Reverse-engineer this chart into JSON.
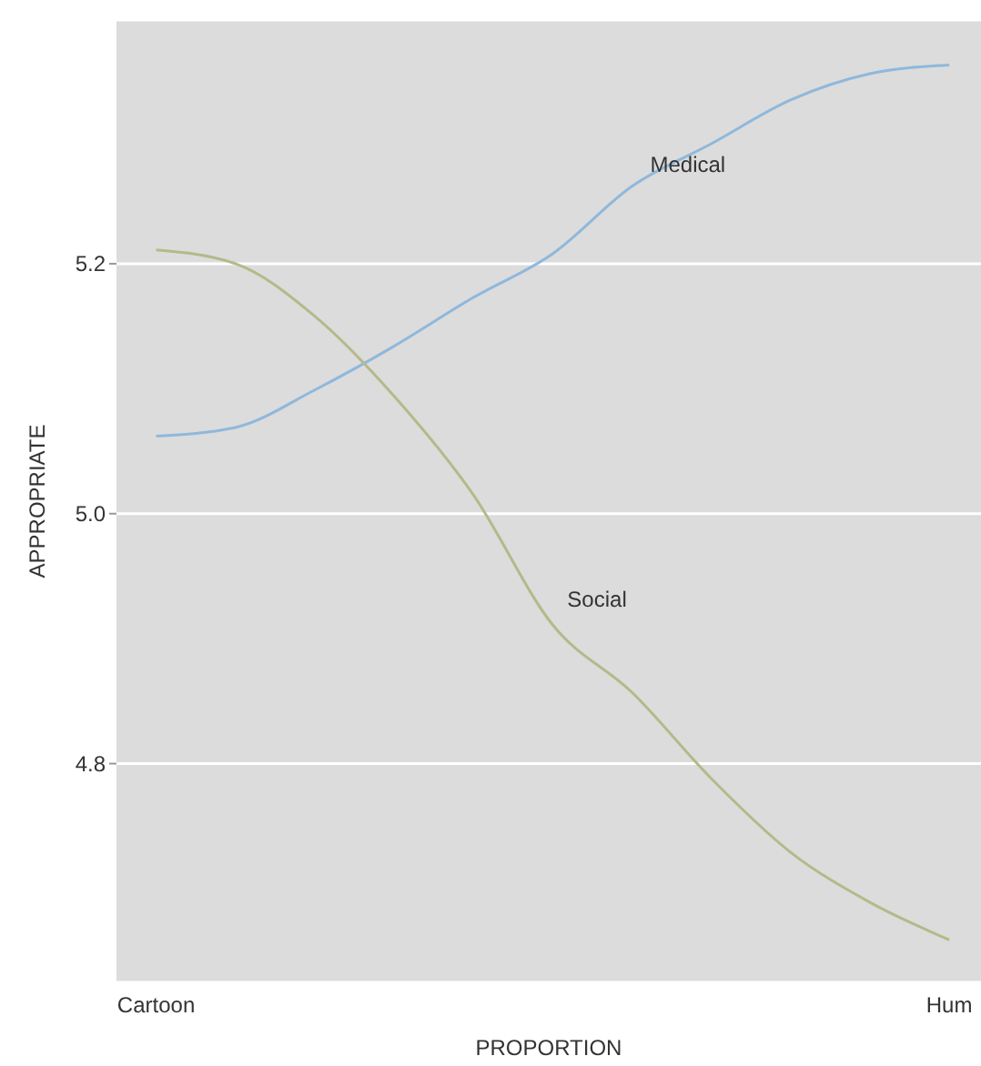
{
  "chart_data": {
    "type": "line",
    "xlabel": "PROPORTION",
    "ylabel": "APPROPRIATE",
    "categories": [
      "Cartoon",
      null,
      null,
      null,
      null,
      null,
      null,
      null,
      null,
      null,
      "Hum"
    ],
    "series": [
      {
        "name": "Medical",
        "color": "#8fb8dc",
        "values": [
          5.062,
          5.069,
          5.099,
          5.134,
          5.173,
          5.208,
          5.262,
          5.296,
          5.331,
          5.352,
          5.359
        ]
      },
      {
        "name": "Social",
        "color": "#b5b98a",
        "values": [
          5.211,
          5.2,
          5.158,
          5.094,
          5.015,
          4.911,
          4.857,
          4.788,
          4.729,
          4.689,
          4.659
        ]
      }
    ],
    "ylim": [
      4.625,
      5.395
    ],
    "yticks": [
      {
        "value": 4.8,
        "label": "4.8"
      },
      {
        "value": 5.0,
        "label": "5.0"
      },
      {
        "value": 5.2,
        "label": "5.2"
      }
    ],
    "grid": "y",
    "marker": "none",
    "line_style": "solid"
  }
}
